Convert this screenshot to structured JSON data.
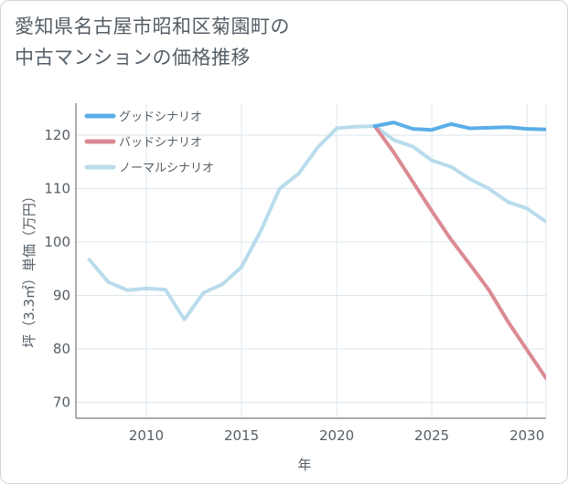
{
  "title": {
    "line1": "愛知県名古屋市昭和区菊園町の",
    "line2": "中古マンションの価格推移"
  },
  "chart_data": {
    "type": "line",
    "xlabel": "年",
    "ylabel": "坪（3.3㎡）単価（万円）",
    "xlim": [
      2006.3,
      2031
    ],
    "ylim": [
      67,
      126
    ],
    "xticks": [
      2010,
      2015,
      2020,
      2025,
      2030
    ],
    "yticks": [
      70,
      80,
      90,
      100,
      110,
      120
    ],
    "grid": true,
    "legend_position": "top-left",
    "series": [
      {
        "name": "グッドシナリオ",
        "color": "#5aaee8",
        "x": [
          2022,
          2023,
          2024,
          2025,
          2026,
          2027,
          2028,
          2029,
          2030,
          2031
        ],
        "values": [
          121.7,
          122.4,
          121.2,
          121.0,
          122.1,
          121.3,
          121.4,
          121.5,
          121.2,
          121.1
        ]
      },
      {
        "name": "バッドシナリオ",
        "color": "#db8a93",
        "x": [
          2022,
          2023,
          2024,
          2025,
          2026,
          2027,
          2028,
          2029,
          2030,
          2031
        ],
        "values": [
          121.7,
          116.8,
          111.3,
          105.8,
          100.5,
          95.8,
          91.0,
          85.1,
          79.8,
          74.5
        ]
      },
      {
        "name": "ノーマルシナリオ",
        "color": "#b9dcec",
        "x": [
          2007,
          2008,
          2009,
          2010,
          2011,
          2012,
          2013,
          2014,
          2015,
          2016,
          2017,
          2018,
          2019,
          2020,
          2021,
          2022,
          2023,
          2024,
          2025,
          2026,
          2027,
          2028,
          2029,
          2030,
          2031
        ],
        "values": [
          96.7,
          92.5,
          91.0,
          91.3,
          91.1,
          85.5,
          90.5,
          92.1,
          95.3,
          102.0,
          110.0,
          112.8,
          117.7,
          121.3,
          121.6,
          121.7,
          119.1,
          117.9,
          115.3,
          114.1,
          111.8,
          110.0,
          107.5,
          106.3,
          103.8
        ]
      }
    ]
  }
}
